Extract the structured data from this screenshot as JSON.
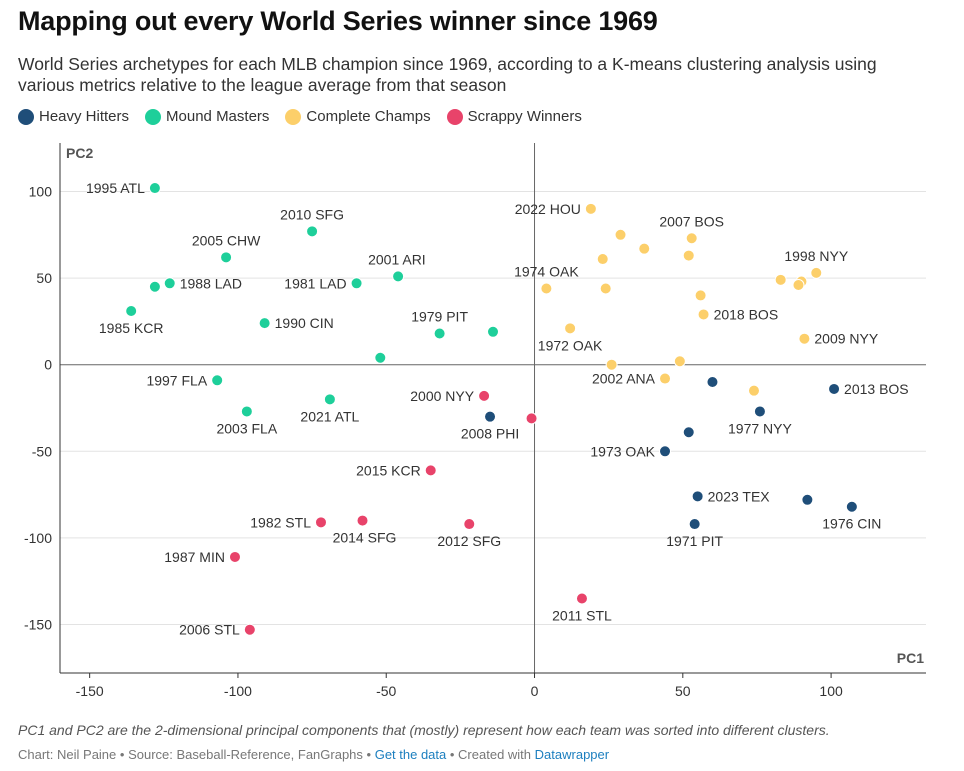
{
  "title": "Mapping out every World Series winner since 1969",
  "subtitle": "World Series archetypes for each MLB champion since 1969, according to a K-means clustering analysis using various metrics relative to the league average from that season",
  "legend": [
    {
      "key": "hh",
      "label": "Heavy Hitters",
      "color": "#1f4e79"
    },
    {
      "key": "mm",
      "label": "Mound Masters",
      "color": "#1ecf9a"
    },
    {
      "key": "cc",
      "label": "Complete Champs",
      "color": "#fccf6a"
    },
    {
      "key": "sw",
      "label": "Scrappy Winners",
      "color": "#e8436a"
    }
  ],
  "footnote": "PC1 and PC2 are the 2-dimensional principal components that (mostly) represent how each team was sorted into different clusters.",
  "credits": {
    "chart_by": "Chart: Neil Paine",
    "source": "Source: Baseball-Reference, FanGraphs",
    "get_data": "Get the data",
    "created_with": "Created with",
    "tool": "Datawrapper",
    "sep": " • "
  },
  "chart_data": {
    "type": "scatter",
    "xlabel": "PC1",
    "ylabel": "PC2",
    "xlim": [
      -160,
      132
    ],
    "ylim": [
      -178,
      128
    ],
    "xticks": [
      -150,
      -100,
      -50,
      0,
      50,
      100
    ],
    "yticks": [
      100,
      50,
      0,
      -50,
      -100,
      -150
    ],
    "grid": true,
    "points": [
      {
        "x": -128,
        "y": 102,
        "c": "mm",
        "label": "1995 ATL",
        "pos": "left"
      },
      {
        "x": -75,
        "y": 77,
        "c": "mm",
        "label": "2010 SFG",
        "pos": "above"
      },
      {
        "x": -104,
        "y": 62,
        "c": "mm",
        "label": "2005 CHW",
        "pos": "above"
      },
      {
        "x": -46,
        "y": 51,
        "c": "mm",
        "label": "2001 ARI",
        "pos": "aboveright"
      },
      {
        "x": -123,
        "y": 47,
        "c": "mm",
        "label": "1988 LAD",
        "pos": "right"
      },
      {
        "x": -60,
        "y": 47,
        "c": "mm",
        "label": "1981 LAD",
        "pos": "left"
      },
      {
        "x": -128,
        "y": 45,
        "c": "mm",
        "label": "",
        "pos": "none"
      },
      {
        "x": -136,
        "y": 31,
        "c": "mm",
        "label": "1985 KCR",
        "pos": "below"
      },
      {
        "x": -91,
        "y": 24,
        "c": "mm",
        "label": "1990 CIN",
        "pos": "right"
      },
      {
        "x": -32,
        "y": 18,
        "c": "mm",
        "label": "1979 PIT",
        "pos": "above"
      },
      {
        "x": -14,
        "y": 19,
        "c": "mm",
        "label": "",
        "pos": "none"
      },
      {
        "x": -52,
        "y": 4,
        "c": "mm",
        "label": "",
        "pos": "none"
      },
      {
        "x": -107,
        "y": -9,
        "c": "mm",
        "label": "1997 FLA",
        "pos": "left"
      },
      {
        "x": -69,
        "y": -20,
        "c": "mm",
        "label": "2021 ATL",
        "pos": "belowleft"
      },
      {
        "x": -97,
        "y": -27,
        "c": "mm",
        "label": "2003 FLA",
        "pos": "below"
      },
      {
        "x": 19,
        "y": 90,
        "c": "cc",
        "label": "2022 HOU",
        "pos": "left"
      },
      {
        "x": 53,
        "y": 73,
        "c": "cc",
        "label": "2007 BOS",
        "pos": "above"
      },
      {
        "x": 29,
        "y": 75,
        "c": "cc",
        "label": "",
        "pos": "none"
      },
      {
        "x": 37,
        "y": 67,
        "c": "cc",
        "label": "",
        "pos": "none"
      },
      {
        "x": 52,
        "y": 63,
        "c": "cc",
        "label": "",
        "pos": "none"
      },
      {
        "x": 23,
        "y": 61,
        "c": "cc",
        "label": "",
        "pos": "none"
      },
      {
        "x": 95,
        "y": 53,
        "c": "cc",
        "label": "1998 NYY",
        "pos": "above"
      },
      {
        "x": 83,
        "y": 49,
        "c": "cc",
        "label": "",
        "pos": "none"
      },
      {
        "x": 90,
        "y": 48,
        "c": "cc",
        "label": "",
        "pos": "none"
      },
      {
        "x": 89,
        "y": 46,
        "c": "cc",
        "label": "",
        "pos": "none"
      },
      {
        "x": 4,
        "y": 44,
        "c": "cc",
        "label": "1974 OAK",
        "pos": "above"
      },
      {
        "x": 24,
        "y": 44,
        "c": "cc",
        "label": "",
        "pos": "none"
      },
      {
        "x": 56,
        "y": 40,
        "c": "cc",
        "label": "",
        "pos": "none"
      },
      {
        "x": 57,
        "y": 29,
        "c": "cc",
        "label": "2018 BOS",
        "pos": "right"
      },
      {
        "x": 12,
        "y": 21,
        "c": "cc",
        "label": "1972 OAK",
        "pos": "below"
      },
      {
        "x": 91,
        "y": 15,
        "c": "cc",
        "label": "2009 NYY",
        "pos": "right"
      },
      {
        "x": 26,
        "y": 0,
        "c": "cc",
        "label": "",
        "pos": "none"
      },
      {
        "x": 49,
        "y": 2,
        "c": "cc",
        "label": "",
        "pos": "none"
      },
      {
        "x": 44,
        "y": -8,
        "c": "cc",
        "label": "2002 ANA",
        "pos": "left"
      },
      {
        "x": 74,
        "y": -15,
        "c": "cc",
        "label": "",
        "pos": "none"
      },
      {
        "x": 60,
        "y": -10,
        "c": "hh",
        "label": "",
        "pos": "none"
      },
      {
        "x": 101,
        "y": -14,
        "c": "hh",
        "label": "2013 BOS",
        "pos": "right"
      },
      {
        "x": 76,
        "y": -27,
        "c": "hh",
        "label": "1977 NYY",
        "pos": "below"
      },
      {
        "x": 52,
        "y": -39,
        "c": "hh",
        "label": "",
        "pos": "none"
      },
      {
        "x": -15,
        "y": -30,
        "c": "hh",
        "label": "2008 PHI",
        "pos": "below"
      },
      {
        "x": 44,
        "y": -50,
        "c": "hh",
        "label": "1973 OAK",
        "pos": "left"
      },
      {
        "x": 55,
        "y": -76,
        "c": "hh",
        "label": "2023 TEX",
        "pos": "right"
      },
      {
        "x": 92,
        "y": -78,
        "c": "hh",
        "label": "",
        "pos": "none"
      },
      {
        "x": 107,
        "y": -82,
        "c": "hh",
        "label": "1976 CIN",
        "pos": "below"
      },
      {
        "x": 54,
        "y": -92,
        "c": "hh",
        "label": "1971 PIT",
        "pos": "below"
      },
      {
        "x": -17,
        "y": -18,
        "c": "sw",
        "label": "2000 NYY",
        "pos": "left"
      },
      {
        "x": -1,
        "y": -31,
        "c": "sw",
        "label": "",
        "pos": "none"
      },
      {
        "x": -35,
        "y": -61,
        "c": "sw",
        "label": "2015 KCR",
        "pos": "left"
      },
      {
        "x": -72,
        "y": -91,
        "c": "sw",
        "label": "1982 STL",
        "pos": "left"
      },
      {
        "x": -58,
        "y": -90,
        "c": "sw",
        "label": "2014 SFG",
        "pos": "belowright"
      },
      {
        "x": -22,
        "y": -92,
        "c": "sw",
        "label": "2012 SFG",
        "pos": "below"
      },
      {
        "x": -101,
        "y": -111,
        "c": "sw",
        "label": "1987 MIN",
        "pos": "left"
      },
      {
        "x": -96,
        "y": -153,
        "c": "sw",
        "label": "2006 STL",
        "pos": "left"
      },
      {
        "x": 16,
        "y": -135,
        "c": "sw",
        "label": "2011 STL",
        "pos": "below"
      }
    ]
  }
}
